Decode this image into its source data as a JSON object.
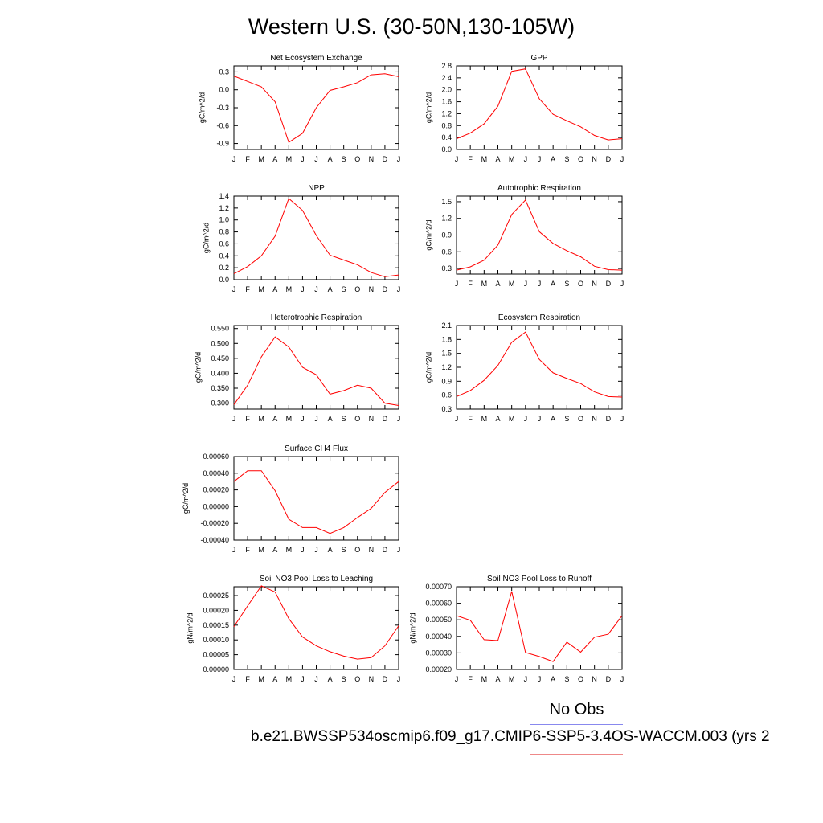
{
  "title": "Western U.S. (30-50N,130-105W)",
  "legend": {
    "obs_label": "No Obs",
    "case_label": "b.e21.BWSSP534oscmip6.f09_g17.CMIP6-SSP5-3.4OS-WACCM.003 (yrs 2",
    "line_color": "#ff0000"
  },
  "chart_data": [
    {
      "type": "line",
      "title": "Net Ecosystem Exchange",
      "ylabel": "gC/m^2/d",
      "x": [
        "J",
        "F",
        "M",
        "A",
        "M",
        "J",
        "J",
        "A",
        "S",
        "O",
        "N",
        "D",
        "J"
      ],
      "y_ticks": [
        "0.3",
        "0.0",
        "-0.3",
        "-0.6",
        "-0.9"
      ],
      "ylim": [
        -1.0,
        0.4
      ],
      "series": [
        {
          "values": [
            0.23,
            0.14,
            0.05,
            -0.2,
            -0.88,
            -0.73,
            -0.3,
            -0.01,
            0.05,
            0.12,
            0.25,
            0.27,
            0.22
          ]
        }
      ]
    },
    {
      "type": "line",
      "title": "GPP",
      "ylabel": "gC/m^2/d",
      "x": [
        "J",
        "F",
        "M",
        "A",
        "M",
        "J",
        "J",
        "A",
        "S",
        "O",
        "N",
        "D",
        "J"
      ],
      "y_ticks": [
        "2.8",
        "2.4",
        "2.0",
        "1.6",
        "1.2",
        "0.8",
        "0.4",
        "0.0"
      ],
      "ylim": [
        0.0,
        2.8
      ],
      "series": [
        {
          "values": [
            0.36,
            0.55,
            0.86,
            1.45,
            2.62,
            2.7,
            1.7,
            1.18,
            0.96,
            0.76,
            0.47,
            0.32,
            0.36
          ]
        }
      ]
    },
    {
      "type": "line",
      "title": "NPP",
      "ylabel": "gC/m^2/d",
      "x": [
        "J",
        "F",
        "M",
        "A",
        "M",
        "J",
        "J",
        "A",
        "S",
        "O",
        "N",
        "D",
        "J"
      ],
      "y_ticks": [
        "1.4",
        "1.2",
        "1.0",
        "0.8",
        "0.6",
        "0.4",
        "0.2",
        "0.0"
      ],
      "ylim": [
        0.0,
        1.4
      ],
      "series": [
        {
          "values": [
            0.1,
            0.22,
            0.4,
            0.73,
            1.36,
            1.16,
            0.74,
            0.41,
            0.33,
            0.25,
            0.12,
            0.05,
            0.08
          ]
        }
      ]
    },
    {
      "type": "line",
      "title": "Autotrophic Respiration",
      "ylabel": "gC/m^2/d",
      "x": [
        "J",
        "F",
        "M",
        "A",
        "M",
        "J",
        "J",
        "A",
        "S",
        "O",
        "N",
        "D",
        "J"
      ],
      "y_ticks": [
        "1.5",
        "1.2",
        "0.9",
        "0.6",
        "0.3"
      ],
      "ylim": [
        0.2,
        1.6
      ],
      "series": [
        {
          "values": [
            0.27,
            0.33,
            0.45,
            0.72,
            1.27,
            1.53,
            0.96,
            0.75,
            0.62,
            0.51,
            0.34,
            0.28,
            0.27
          ]
        }
      ]
    },
    {
      "type": "line",
      "title": "Heterotrophic Respiration",
      "ylabel": "gC/m^2/d",
      "x": [
        "J",
        "F",
        "M",
        "A",
        "M",
        "J",
        "J",
        "A",
        "S",
        "O",
        "N",
        "D",
        "J"
      ],
      "y_ticks": [
        "0.550",
        "0.500",
        "0.450",
        "0.400",
        "0.350",
        "0.300"
      ],
      "ylim": [
        0.28,
        0.56
      ],
      "series": [
        {
          "values": [
            0.295,
            0.36,
            0.455,
            0.522,
            0.488,
            0.42,
            0.395,
            0.33,
            0.342,
            0.36,
            0.35,
            0.3,
            0.292
          ]
        }
      ]
    },
    {
      "type": "line",
      "title": "Ecosystem Respiration",
      "ylabel": "gC/m^2/d",
      "x": [
        "J",
        "F",
        "M",
        "A",
        "M",
        "J",
        "J",
        "A",
        "S",
        "O",
        "N",
        "D",
        "J"
      ],
      "y_ticks": [
        "2.1",
        "1.8",
        "1.5",
        "1.2",
        "0.9",
        "0.6",
        "0.3"
      ],
      "ylim": [
        0.3,
        2.1
      ],
      "series": [
        {
          "values": [
            0.57,
            0.7,
            0.92,
            1.24,
            1.74,
            1.96,
            1.37,
            1.08,
            0.96,
            0.85,
            0.67,
            0.57,
            0.56
          ]
        }
      ]
    },
    {
      "type": "line",
      "title": "Surface CH4 Flux",
      "ylabel": "gC/m^2/d",
      "x": [
        "J",
        "F",
        "M",
        "A",
        "M",
        "J",
        "J",
        "A",
        "S",
        "O",
        "N",
        "D",
        "J"
      ],
      "y_ticks": [
        "0.00060",
        "0.00040",
        "0.00020",
        "0.00000",
        "-0.00020",
        "-0.00040"
      ],
      "ylim": [
        -0.0004,
        0.0006
      ],
      "series": [
        {
          "values": [
            0.0003,
            0.00043,
            0.00043,
            0.00019,
            -0.00015,
            -0.00025,
            -0.00025,
            -0.00032,
            -0.00025,
            -0.00013,
            -2e-05,
            0.00017,
            0.0003
          ]
        }
      ]
    },
    {
      "type": "line",
      "title": "Soil NO3 Pool Loss to Leaching",
      "ylabel": "gN/m^2/d",
      "x": [
        "J",
        "F",
        "M",
        "A",
        "M",
        "J",
        "J",
        "A",
        "S",
        "O",
        "N",
        "D",
        "J"
      ],
      "y_ticks": [
        "0.00025",
        "0.00020",
        "0.00015",
        "0.00010",
        "0.00005",
        "0.00000"
      ],
      "ylim": [
        0.0,
        0.00028
      ],
      "series": [
        {
          "values": [
            0.000145,
            0.000215,
            0.000283,
            0.000262,
            0.000172,
            0.00011,
            8e-05,
            6e-05,
            4.5e-05,
            3.5e-05,
            4e-05,
            8e-05,
            0.000148
          ]
        }
      ]
    },
    {
      "type": "line",
      "title": "Soil NO3 Pool Loss to Runoff",
      "ylabel": "gN/m^2/d",
      "x": [
        "J",
        "F",
        "M",
        "A",
        "M",
        "J",
        "J",
        "A",
        "S",
        "O",
        "N",
        "D",
        "J"
      ],
      "y_ticks": [
        "0.00070",
        "0.00060",
        "0.00050",
        "0.00040",
        "0.00030",
        "0.00020"
      ],
      "ylim": [
        0.0002,
        0.0007
      ],
      "series": [
        {
          "values": [
            0.000525,
            0.000497,
            0.00038,
            0.000375,
            0.000672,
            0.000303,
            0.000278,
            0.000248,
            0.000365,
            0.000305,
            0.000395,
            0.000413,
            0.000525
          ]
        }
      ]
    }
  ]
}
